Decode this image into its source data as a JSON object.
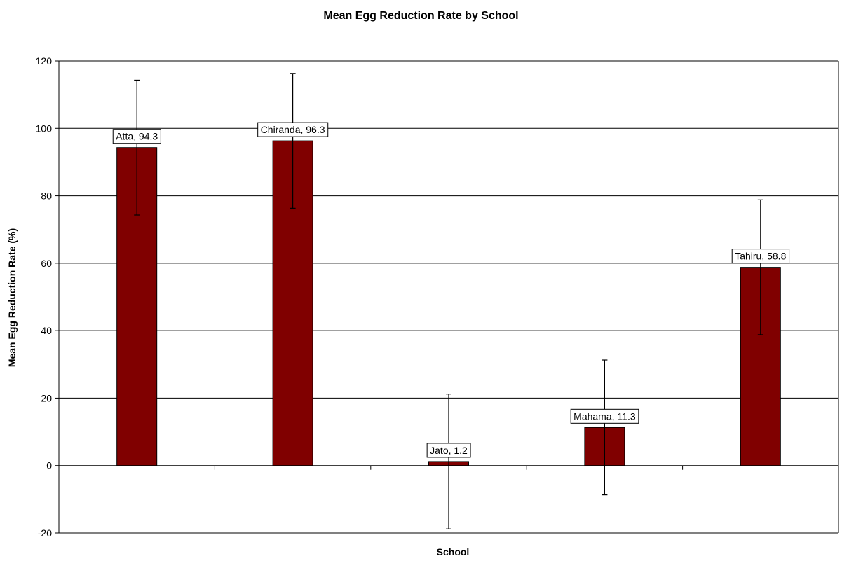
{
  "chart_data": {
    "type": "bar",
    "title": "Mean Egg Reduction Rate by School",
    "xlabel": "School",
    "ylabel": "Mean Egg Reduction Rate (%)",
    "ylim": [
      -20,
      120
    ],
    "yticks": [
      -20,
      0,
      20,
      40,
      60,
      80,
      100,
      120
    ],
    "grid": true,
    "categories": [
      "Atta",
      "Chiranda",
      "Jato",
      "Mahama",
      "Tahiru"
    ],
    "values": [
      94.3,
      96.3,
      1.2,
      11.3,
      58.8
    ],
    "error": [
      20,
      20,
      20,
      20,
      20
    ],
    "data_labels": [
      "Atta, 94.3",
      "Chiranda, 96.3",
      "Jato, 1.2",
      "Mahama, 11.3",
      "Tahiru, 58.8"
    ],
    "bar_color": "#800000"
  }
}
